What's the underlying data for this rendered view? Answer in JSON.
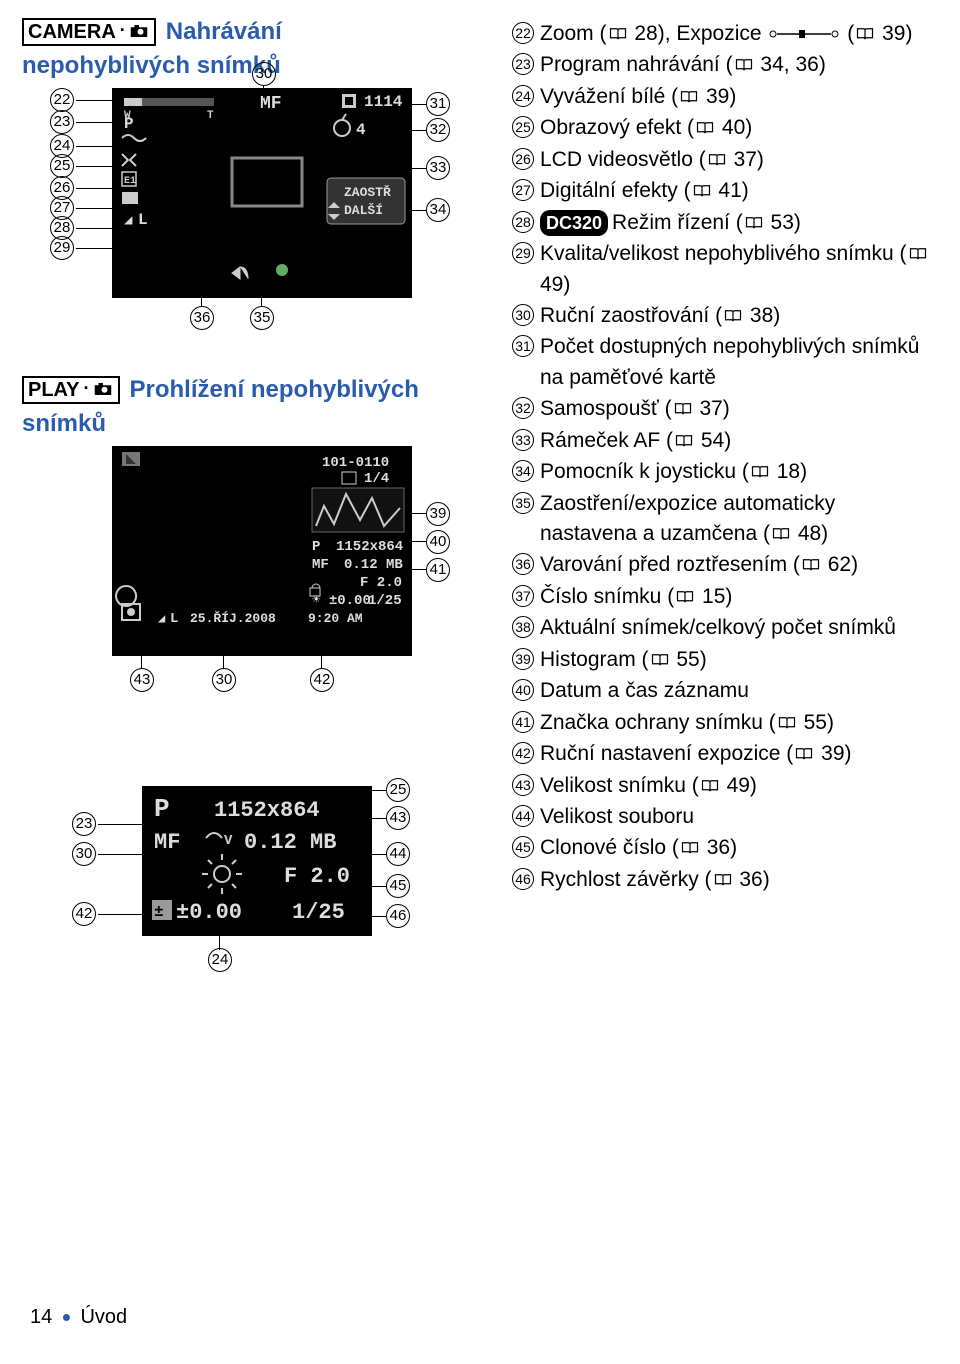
{
  "modes": {
    "camera": "CAMERA",
    "play": "PLAY",
    "title_rec_1": "Nahrávání",
    "title_rec_2": "nepohyblivých snímků",
    "title_play": "Prohlížení nepohyblivých",
    "title_snimku": "snímků"
  },
  "lcd1": {
    "mf": "MF",
    "counter": "1114",
    "timer": "4",
    "p": "P",
    "e1": "E1",
    "qual": "L",
    "zaostr": "ZAOSTŘ",
    "dalsi": "DALŠÍ"
  },
  "lcd2": {
    "folder": "101-0110",
    "frame": "1/4",
    "p": "P",
    "res": "1152x864",
    "mf": "MF",
    "size": "0.12 MB",
    "f": "F 2.0",
    "ev": "±0.00",
    "sh": "1/25",
    "qual": "L",
    "date": "25.ŘÍJ.2008",
    "time": "9:20 AM"
  },
  "lcd3": {
    "p": "P",
    "res": "1152x864",
    "mf": "MF",
    "size": "0.12 MB",
    "f": "F 2.0",
    "ev": "±0.00",
    "sh": "1/25"
  },
  "callouts_left1": [
    "22",
    "23",
    "24",
    "25",
    "26",
    "27",
    "28",
    "29"
  ],
  "callouts_right1": [
    "31",
    "32",
    "33",
    "34"
  ],
  "callouts_top1": "30",
  "callouts_bot1": [
    "36",
    "35"
  ],
  "callouts2_right": [
    "39",
    "40",
    "41"
  ],
  "callouts2_bot": [
    "43",
    "30",
    "42"
  ],
  "callouts3_left": [
    "23",
    "30",
    "42"
  ],
  "callouts3_right": [
    "25",
    "43",
    "44",
    "45",
    "46"
  ],
  "callouts3_bot": "24",
  "legend": [
    {
      "n": "22",
      "t": "Zoom (📖 28), Expozice ▫─◂──▫ (📖 39)"
    },
    {
      "n": "23",
      "t": "Program nahrávání (📖 34, 36)"
    },
    {
      "n": "24",
      "t": "Vyvážení bílé (📖 39)"
    },
    {
      "n": "25",
      "t": "Obrazový efekt (📖 40)"
    },
    {
      "n": "26",
      "t": "LCD videosvětlo (📖 37)"
    },
    {
      "n": "27",
      "t": "Digitální efekty (📖 41)"
    },
    {
      "n": "28",
      "t": "DC320 Režim řízení (📖 53)",
      "dc": true
    },
    {
      "n": "29",
      "t": "Kvalita/velikost nepohyblivého snímku (📖 49)",
      "ml": true
    },
    {
      "n": "30",
      "t": "Ruční zaostřování (📖 38)"
    },
    {
      "n": "31",
      "t": "Počet dostupných nepohyblivých snímků na paměťové kartě",
      "sub": true
    },
    {
      "n": "32",
      "t": "Samospoušť (📖 37)"
    },
    {
      "n": "33",
      "t": "Rámeček AF (📖 54)"
    },
    {
      "n": "34",
      "t": "Pomocník k joysticku (📖 18)"
    },
    {
      "n": "35",
      "t": "Zaostření/expozice automaticky nastavena a uzamčena (📖 48)"
    },
    {
      "n": "36",
      "t": "Varování před roztřesením (📖 62)"
    },
    {
      "n": "37",
      "t": "Číslo snímku (📖 15)"
    },
    {
      "n": "38",
      "t": "Aktuální snímek/celkový počet snímků"
    },
    {
      "n": "39",
      "t": "Histogram (📖 55)"
    },
    {
      "n": "40",
      "t": "Datum a čas záznamu"
    },
    {
      "n": "41",
      "t": "Značka ochrany snímku (📖 55)"
    },
    {
      "n": "42",
      "t": "Ruční nastavení expozice (📖 39)"
    },
    {
      "n": "43",
      "t": "Velikost snímku (📖 49)"
    },
    {
      "n": "44",
      "t": "Velikost souboru"
    },
    {
      "n": "45",
      "t": "Clonové číslo (📖 36)"
    },
    {
      "n": "46",
      "t": "Rychlost závěrky (📖 36)"
    }
  ],
  "footer": {
    "page": "14",
    "sep": "•",
    "section": "Úvod"
  }
}
